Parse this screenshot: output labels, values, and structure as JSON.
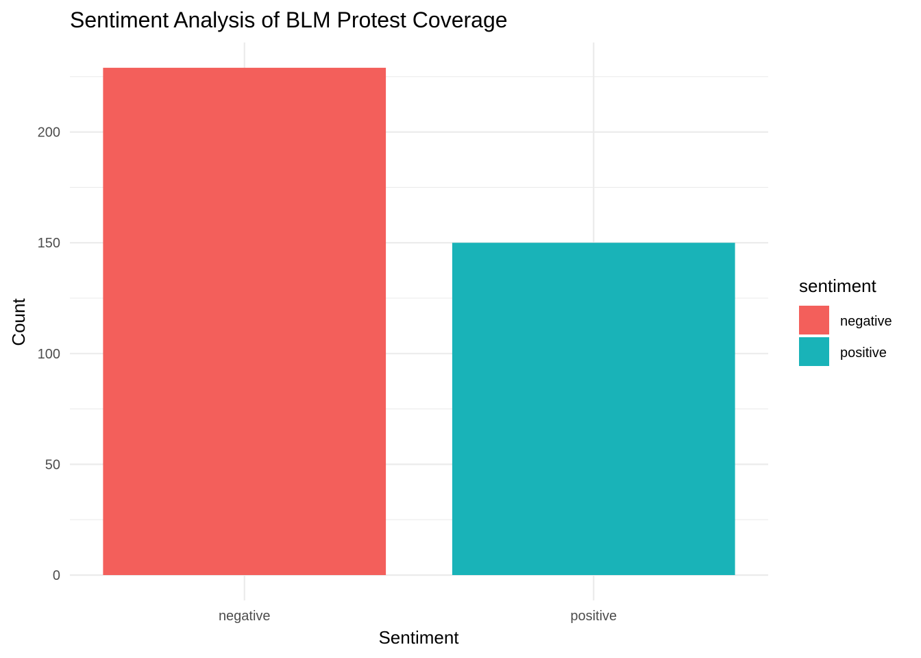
{
  "chart_data": {
    "type": "bar",
    "title": "Sentiment Analysis of BLM Protest Coverage",
    "xlabel": "Sentiment",
    "ylabel": "Count",
    "categories": [
      "negative",
      "positive"
    ],
    "values": [
      229,
      150
    ],
    "colors": [
      "#F35F5B",
      "#19B3B8"
    ],
    "ylim": [
      0,
      236
    ],
    "yticks": [
      0,
      50,
      100,
      150,
      200
    ],
    "grid": true,
    "legend": {
      "title": "sentiment",
      "position": "right",
      "items": [
        {
          "label": "negative",
          "color": "#F35F5B"
        },
        {
          "label": "positive",
          "color": "#19B3B8"
        }
      ]
    }
  }
}
